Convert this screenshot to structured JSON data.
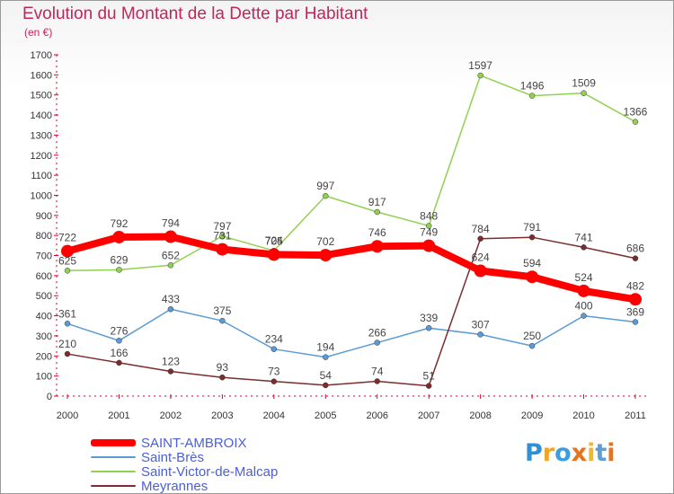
{
  "chart_data": {
    "type": "line",
    "title": "Evolution du Montant de la Dette par Habitant",
    "subtitle": "(en €)",
    "categories": [
      "2000",
      "2001",
      "2002",
      "2003",
      "2004",
      "2005",
      "2006",
      "2007",
      "2008",
      "2009",
      "2010",
      "2011"
    ],
    "ylim": [
      0,
      1700
    ],
    "yticks": [
      0,
      100,
      200,
      300,
      400,
      500,
      600,
      700,
      800,
      900,
      1000,
      1100,
      1200,
      1300,
      1400,
      1500,
      1600,
      1700
    ],
    "grid": false,
    "legend_position": "bottom-left",
    "series": [
      {
        "name": "SAINT-AMBROIX",
        "color": "#ff0000",
        "values": [
          722,
          792,
          794,
          731,
          705,
          702,
          746,
          749,
          624,
          594,
          524,
          482
        ]
      },
      {
        "name": "Saint-Brès",
        "color": "#5b9bd5",
        "values": [
          361,
          276,
          433,
          375,
          234,
          194,
          266,
          339,
          307,
          250,
          400,
          369
        ]
      },
      {
        "name": "Saint-Victor-de-Malcap",
        "color": "#92d050",
        "values": [
          625,
          629,
          652,
          797,
          724,
          997,
          917,
          848,
          1597,
          1496,
          1509,
          1366
        ]
      },
      {
        "name": "Meyrannes",
        "color": "#7b2c2c",
        "values": [
          210,
          166,
          123,
          93,
          73,
          54,
          74,
          51,
          784,
          791,
          741,
          686
        ]
      }
    ]
  },
  "colors": {
    "title": "#c0265a",
    "axis": "#d9002e",
    "tick_label": "#333333",
    "data_label": "#444444",
    "legend_text": "#4b5fd6"
  },
  "logo": {
    "letters": [
      "P",
      "r",
      "o",
      "x",
      "i",
      "t",
      "i"
    ],
    "letter_colors": [
      "#2f8fd8",
      "#f3a521",
      "#3c9de0",
      "#e8731a",
      "#f0b92a",
      "#5c9fd8",
      "#e8731a"
    ]
  }
}
